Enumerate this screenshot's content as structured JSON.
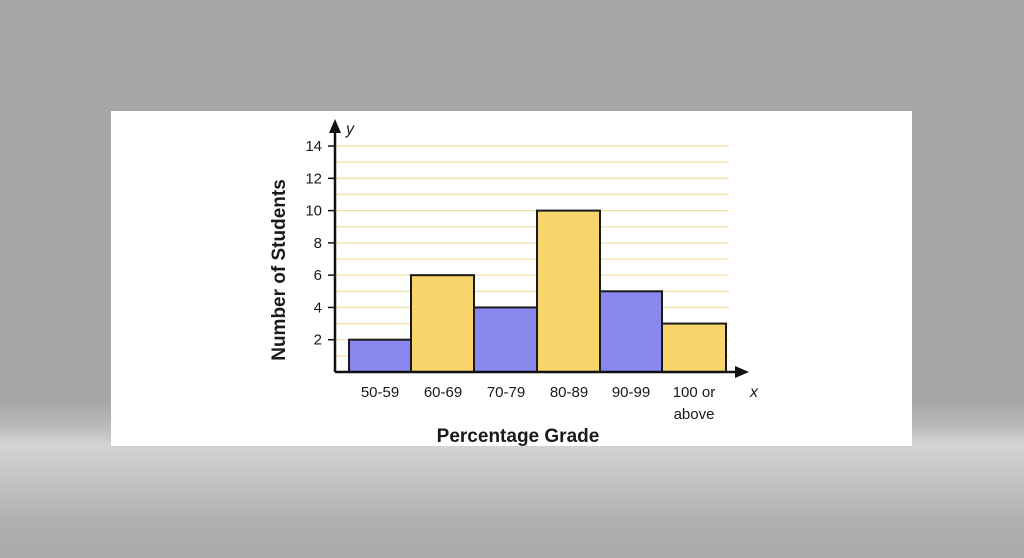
{
  "chart_data": {
    "type": "bar",
    "title": "",
    "xlabel": "Percentage Grade",
    "ylabel": "Number of Students",
    "x_axis_letter": "x",
    "y_axis_letter": "y",
    "categories": [
      "50-59",
      "60-69",
      "70-79",
      "80-89",
      "90-99",
      "100 or above"
    ],
    "values": [
      2,
      6,
      4,
      10,
      5,
      3
    ],
    "bar_colors": [
      "#8a88ee",
      "#f8d46c",
      "#8a88ee",
      "#f8d46c",
      "#8a88ee",
      "#f8d46c"
    ],
    "yticks": [
      2,
      4,
      6,
      8,
      10,
      12,
      14
    ],
    "ylim": [
      0,
      14
    ],
    "grid": true,
    "grid_color": "#f3dfa8",
    "grid_step": 1,
    "legend": null
  },
  "labels": {
    "ylabel": "Number of Students",
    "xlabel": "Percentage Grade",
    "x_letter": "x",
    "y_letter": "y",
    "categories": [
      "50-59",
      "60-69",
      "70-79",
      "80-89",
      "90-99",
      "100 or",
      "above"
    ],
    "yticks": [
      "2",
      "4",
      "6",
      "8",
      "10",
      "12",
      "14"
    ]
  }
}
